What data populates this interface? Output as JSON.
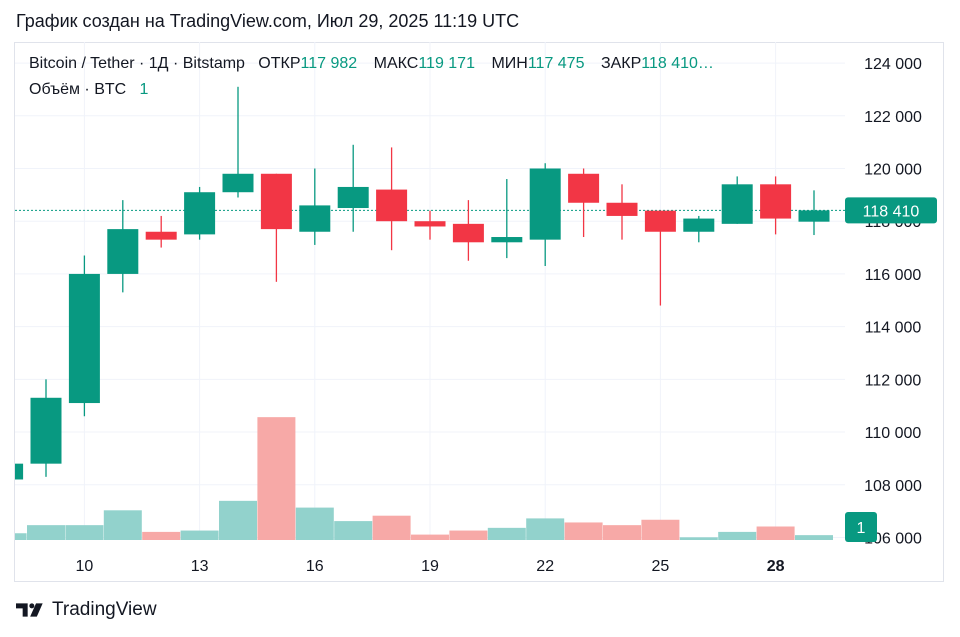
{
  "header": {
    "created_text": "График создан на TradingView.com, Июл 29, 2025 11:19 UTC"
  },
  "legend": {
    "symbol": "Bitcoin / Tether · 1Д · Bitstamp",
    "open_label": "ОТКР",
    "open_value": "117 982",
    "high_label": "МАКС",
    "high_value": "119 171",
    "low_label": "МИН",
    "low_value": "117 475",
    "close_label": "ЗАКР",
    "close_value": "118 410…",
    "volume_label": "Объём · BTC",
    "volume_value": "1"
  },
  "brand": {
    "name": "TradingView",
    "logo_icon": "tradingview-logo-icon"
  },
  "colors": {
    "up": "#089981",
    "down": "#f23645",
    "vol_up": "#92d2cc",
    "vol_down": "#f7a9a7",
    "grid": "#f0f3fa"
  },
  "chart_data": {
    "type": "candlestick",
    "price_axis": {
      "min": 105600,
      "max": 124800,
      "ticks": [
        "124 000",
        "122 000",
        "120 000",
        "118 000",
        "116 000",
        "114 000",
        "112 000",
        "110 000",
        "108 000",
        "106 000"
      ],
      "tick_values": [
        124000,
        122000,
        120000,
        118000,
        116000,
        114000,
        112000,
        110000,
        108000,
        106000
      ]
    },
    "last_price": {
      "value": 118410,
      "label": "118 410"
    },
    "volume_last_label": "1",
    "x_ticks": [
      {
        "label": "10",
        "index": 2,
        "bold": false
      },
      {
        "label": "13",
        "index": 5,
        "bold": false
      },
      {
        "label": "16",
        "index": 8,
        "bold": false
      },
      {
        "label": "19",
        "index": 11,
        "bold": false
      },
      {
        "label": "22",
        "index": 14,
        "bold": false
      },
      {
        "label": "25",
        "index": 17,
        "bold": false
      },
      {
        "label": "28",
        "index": 20,
        "bold": true
      }
    ],
    "candles": [
      {
        "o": 108200,
        "h": 108900,
        "l": 108100,
        "c": 108800,
        "v": 0.25
      },
      {
        "o": 108800,
        "h": 112000,
        "l": 108300,
        "c": 111300,
        "v": 0.55
      },
      {
        "o": 111100,
        "h": 116700,
        "l": 110600,
        "c": 116000,
        "v": 0.55
      },
      {
        "o": 116000,
        "h": 118800,
        "l": 115300,
        "c": 117700,
        "v": 1.1
      },
      {
        "o": 117600,
        "h": 118200,
        "l": 117000,
        "c": 117300,
        "v": 0.3
      },
      {
        "o": 117500,
        "h": 119300,
        "l": 117300,
        "c": 119100,
        "v": 0.35
      },
      {
        "o": 119100,
        "h": 123100,
        "l": 118900,
        "c": 119800,
        "v": 1.45
      },
      {
        "o": 119800,
        "h": 119800,
        "l": 115700,
        "c": 117700,
        "v": 4.55
      },
      {
        "o": 117600,
        "h": 120000,
        "l": 117100,
        "c": 118600,
        "v": 1.2
      },
      {
        "o": 118500,
        "h": 120900,
        "l": 117600,
        "c": 119300,
        "v": 0.7
      },
      {
        "o": 119200,
        "h": 120800,
        "l": 116900,
        "c": 118000,
        "v": 0.9
      },
      {
        "o": 118000,
        "h": 118400,
        "l": 117300,
        "c": 117800,
        "v": 0.2
      },
      {
        "o": 117900,
        "h": 118800,
        "l": 116500,
        "c": 117200,
        "v": 0.35
      },
      {
        "o": 117200,
        "h": 119600,
        "l": 116600,
        "c": 117400,
        "v": 0.45
      },
      {
        "o": 117300,
        "h": 120200,
        "l": 116300,
        "c": 120000,
        "v": 0.8
      },
      {
        "o": 119800,
        "h": 120000,
        "l": 117400,
        "c": 118700,
        "v": 0.65
      },
      {
        "o": 118700,
        "h": 119400,
        "l": 117300,
        "c": 118200,
        "v": 0.55
      },
      {
        "o": 118400,
        "h": 118400,
        "l": 114800,
        "c": 117600,
        "v": 0.75
      },
      {
        "o": 117600,
        "h": 118200,
        "l": 117200,
        "c": 118100,
        "v": 0.1
      },
      {
        "o": 117900,
        "h": 119700,
        "l": 117900,
        "c": 119400,
        "v": 0.3
      },
      {
        "o": 119400,
        "h": 119700,
        "l": 117500,
        "c": 118100,
        "v": 0.5
      },
      {
        "o": 117982,
        "h": 119171,
        "l": 117475,
        "c": 118410,
        "v": 0.18
      }
    ]
  }
}
